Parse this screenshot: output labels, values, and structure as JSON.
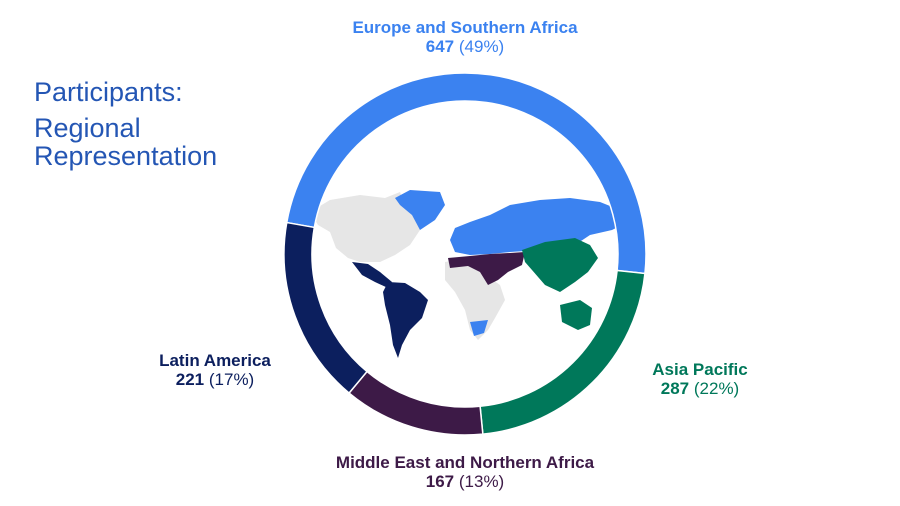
{
  "title": {
    "line1": "Participants:",
    "line2": "Regional",
    "line3": "Representation"
  },
  "chart_data": {
    "type": "pie",
    "donut": true,
    "start_angle_deg": 280,
    "categories": [
      "Europe and Southern Africa",
      "Asia Pacific",
      "Middle East and Northern Africa",
      "Latin America"
    ],
    "values": [
      647,
      287,
      167,
      221
    ],
    "percent_labels": [
      "(49%)",
      "(22%)",
      "(13%)",
      "(17%)"
    ],
    "colors": [
      "#3b82f0",
      "#00785a",
      "#3d1a47",
      "#0c1f5e"
    ],
    "center_image": "world-map"
  }
}
